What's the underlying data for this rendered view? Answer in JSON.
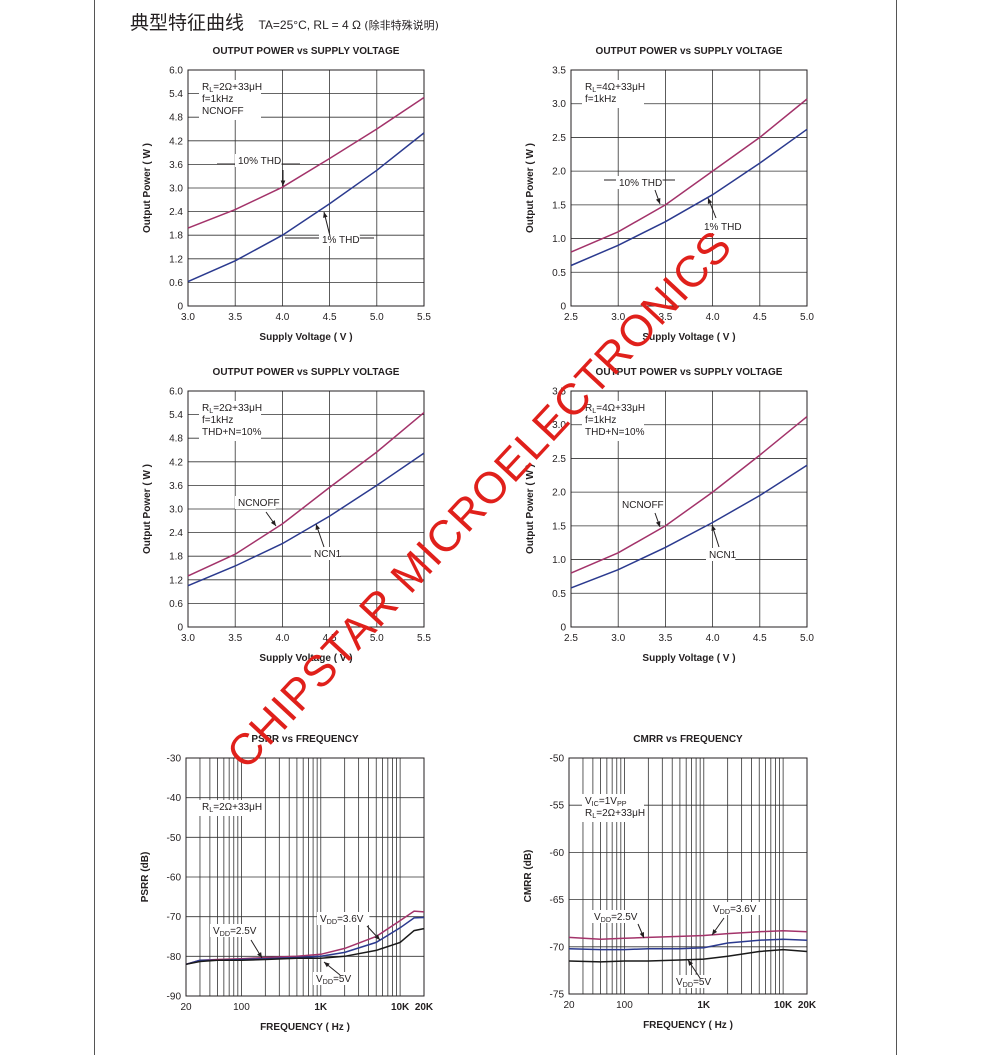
{
  "header": {
    "title_zh": "典型特征曲线",
    "conditions": "TA=25°C, RL = 4 Ω",
    "note": "(除非特殊说明)"
  },
  "watermark": "CHIPSTAR MICROELECTRONICS",
  "colors": {
    "magenta": "#a3336a",
    "blue": "#2b3a8f",
    "black": "#1a1a1a",
    "grid": "#333333",
    "watermark": "#e0201b"
  },
  "chart_data": [
    {
      "type": "line",
      "title": "OUTPUT POWER vs SUPPLY VOLTAGE",
      "xlabel": "Supply Voltage ( V )",
      "ylabel": "Output Power ( W )",
      "xlim": [
        3.0,
        5.5
      ],
      "ylim": [
        0,
        6.0
      ],
      "xticks": [
        "3.0",
        "3.5",
        "4.0",
        "4.5",
        "5.0",
        "5.5"
      ],
      "yticks": [
        "0",
        "0.6",
        "1.2",
        "1.8",
        "2.4",
        "3.0",
        "3.6",
        "4.2",
        "4.8",
        "5.4",
        "6.0"
      ],
      "conditions": [
        "RL=2Ω+33μH",
        "f=1kHz",
        "NCNOFF"
      ],
      "series": [
        {
          "name": "10% THD",
          "color": "magenta",
          "x": [
            3.0,
            3.5,
            4.0,
            4.5,
            5.0,
            5.5
          ],
          "y": [
            1.98,
            2.45,
            3.02,
            3.75,
            4.5,
            5.3
          ]
        },
        {
          "name": "1% THD",
          "color": "blue",
          "x": [
            3.0,
            3.5,
            4.0,
            4.5,
            5.0,
            5.5
          ],
          "y": [
            0.62,
            1.15,
            1.8,
            2.6,
            3.45,
            4.4
          ]
        }
      ],
      "annotations": [
        "10% THD",
        "1% THD"
      ]
    },
    {
      "type": "line",
      "title": "OUTPUT POWER vs SUPPLY VOLTAGE",
      "xlabel": "Supply Voltage ( V )",
      "ylabel": "Output Power ( W )",
      "xlim": [
        2.5,
        5.0
      ],
      "ylim": [
        0,
        3.5
      ],
      "xticks": [
        "2.5",
        "3.0",
        "3.5",
        "4.0",
        "4.5",
        "5.0"
      ],
      "yticks": [
        "0",
        "0.5",
        "1.0",
        "1.5",
        "2.0",
        "2.5",
        "3.0",
        "3.5"
      ],
      "conditions": [
        "RL=4Ω+33μH",
        "f=1kHz"
      ],
      "series": [
        {
          "name": "10% THD",
          "color": "magenta",
          "x": [
            2.5,
            3.0,
            3.5,
            4.0,
            4.5,
            5.0
          ],
          "y": [
            0.8,
            1.1,
            1.5,
            2.0,
            2.5,
            3.07
          ]
        },
        {
          "name": "1% THD",
          "color": "blue",
          "x": [
            2.5,
            3.0,
            3.5,
            4.0,
            4.5,
            5.0
          ],
          "y": [
            0.6,
            0.9,
            1.25,
            1.65,
            2.12,
            2.62
          ]
        }
      ],
      "annotations": [
        "10% THD",
        "1% THD"
      ]
    },
    {
      "type": "line",
      "title": "OUTPUT POWER vs SUPPLY VOLTAGE",
      "xlabel": "Supply Voltage ( V )",
      "ylabel": "Output Power ( W )",
      "xlim": [
        3.0,
        5.5
      ],
      "ylim": [
        0,
        6.0
      ],
      "xticks": [
        "3.0",
        "3.5",
        "4.0",
        "4.5",
        "5.0",
        "5.5"
      ],
      "yticks": [
        "0",
        "0.6",
        "1.2",
        "1.8",
        "2.4",
        "3.0",
        "3.6",
        "4.2",
        "4.8",
        "5.4",
        "6.0"
      ],
      "conditions": [
        "RL=2Ω+33μH",
        "f=1kHz",
        "THD+N=10%"
      ],
      "series": [
        {
          "name": "NCNOFF",
          "color": "magenta",
          "x": [
            3.0,
            3.5,
            4.0,
            4.5,
            5.0,
            5.5
          ],
          "y": [
            1.3,
            1.85,
            2.62,
            3.55,
            4.45,
            5.45
          ]
        },
        {
          "name": "NCN1",
          "color": "blue",
          "x": [
            3.0,
            3.5,
            4.0,
            4.5,
            5.0,
            5.5
          ],
          "y": [
            1.05,
            1.55,
            2.12,
            2.82,
            3.6,
            4.42
          ]
        }
      ],
      "annotations": [
        "NCNOFF",
        "NCN1"
      ]
    },
    {
      "type": "line",
      "title": "OUTPUT POWER vs SUPPLY VOLTAGE",
      "xlabel": "Supply Voltage ( V )",
      "ylabel": "Output Power ( W )",
      "xlim": [
        2.5,
        5.0
      ],
      "ylim": [
        0,
        3.5
      ],
      "xticks": [
        "2.5",
        "3.0",
        "3.5",
        "4.0",
        "4.5",
        "5.0"
      ],
      "yticks": [
        "0",
        "0.5",
        "1.0",
        "1.5",
        "2.0",
        "2.5",
        "3.0",
        "3.5"
      ],
      "conditions": [
        "RL=4Ω+33μH",
        "f=1kHz",
        "THD+N=10%"
      ],
      "series": [
        {
          "name": "NCNOFF",
          "color": "magenta",
          "x": [
            2.5,
            3.0,
            3.5,
            4.0,
            4.5,
            5.0
          ],
          "y": [
            0.8,
            1.1,
            1.5,
            2.0,
            2.55,
            3.12
          ]
        },
        {
          "name": "NCN1",
          "color": "blue",
          "x": [
            2.5,
            3.0,
            3.5,
            4.0,
            4.5,
            5.0
          ],
          "y": [
            0.58,
            0.85,
            1.18,
            1.55,
            1.95,
            2.4
          ]
        }
      ],
      "annotations": [
        "NCNOFF",
        "NCN1"
      ]
    },
    {
      "type": "line",
      "title": "PSRR vs FREQUENCY",
      "xlabel": "FREQUENCY ( Hz )",
      "ylabel": "PSRR (dB)",
      "xscale": "log",
      "xlim": [
        20,
        20000
      ],
      "ylim": [
        -90,
        -30
      ],
      "xticks": [
        "20",
        "100",
        "1K",
        "10K",
        "20K"
      ],
      "yticks": [
        "-90",
        "-80",
        "-70",
        "-60",
        "-50",
        "-40",
        "-30"
      ],
      "conditions": [
        "RL=2Ω+33μH"
      ],
      "series": [
        {
          "name": "VDD=3.6V",
          "color": "magenta",
          "x": [
            20,
            30,
            50,
            100,
            200,
            500,
            1000,
            2000,
            5000,
            10000,
            15000,
            20000
          ],
          "y": [
            -82,
            -81,
            -80.8,
            -80.6,
            -80.3,
            -80,
            -79.5,
            -78,
            -75,
            -71,
            -68.6,
            -68.8
          ]
        },
        {
          "name": "VDD=2.5V",
          "color": "blue",
          "x": [
            20,
            30,
            50,
            100,
            200,
            500,
            1000,
            2000,
            5000,
            10000,
            15000,
            20000
          ],
          "y": [
            -82,
            -81,
            -81,
            -80.8,
            -80.6,
            -80.3,
            -80,
            -79,
            -76.5,
            -72.8,
            -70.3,
            -70.2
          ]
        },
        {
          "name": "VDD=5V",
          "color": "black",
          "x": [
            20,
            30,
            50,
            100,
            200,
            500,
            1000,
            2000,
            5000,
            10000,
            15000,
            20000
          ],
          "y": [
            -82,
            -81.3,
            -81,
            -81,
            -80.8,
            -80.5,
            -80.5,
            -80,
            -78.5,
            -76.5,
            -73.5,
            -73
          ]
        }
      ],
      "annotations": [
        "VDD=2.5V",
        "VDD=3.6V",
        "VDD=5V"
      ]
    },
    {
      "type": "line",
      "title": "CMRR vs FREQUENCY",
      "xlabel": "FREQUENCY ( Hz )",
      "ylabel": "CMRR (dB)",
      "xscale": "log",
      "xlim": [
        20,
        20000
      ],
      "ylim": [
        -75,
        -50
      ],
      "xticks": [
        "20",
        "100",
        "1K",
        "10K",
        "20K"
      ],
      "yticks": [
        "-75",
        "-70",
        "-65",
        "-60",
        "-55",
        "-50"
      ],
      "conditions": [
        "VIC=1VPP",
        "RL=2Ω+33μH"
      ],
      "series": [
        {
          "name": "VDD=3.6V",
          "color": "magenta",
          "x": [
            20,
            50,
            100,
            200,
            500,
            1000,
            2000,
            5000,
            10000,
            20000
          ],
          "y": [
            -69,
            -69.2,
            -69.1,
            -69,
            -68.9,
            -68.8,
            -68.6,
            -68.4,
            -68.3,
            -68.4
          ]
        },
        {
          "name": "VDD=2.5V",
          "color": "blue",
          "x": [
            20,
            50,
            100,
            200,
            500,
            1000,
            2000,
            5000,
            10000,
            20000
          ],
          "y": [
            -70.2,
            -70.3,
            -70.3,
            -70.2,
            -70.2,
            -70.1,
            -69.6,
            -69.3,
            -69.2,
            -69.3
          ]
        },
        {
          "name": "VDD=5V",
          "color": "black",
          "x": [
            20,
            50,
            100,
            200,
            500,
            1000,
            2000,
            5000,
            10000,
            20000
          ],
          "y": [
            -71.5,
            -71.6,
            -71.5,
            -71.5,
            -71.4,
            -71.3,
            -71,
            -70.5,
            -70.3,
            -70.5
          ]
        }
      ],
      "annotations": [
        "VDD=2.5V",
        "VDD=3.6V",
        "VDD=5V"
      ]
    }
  ]
}
